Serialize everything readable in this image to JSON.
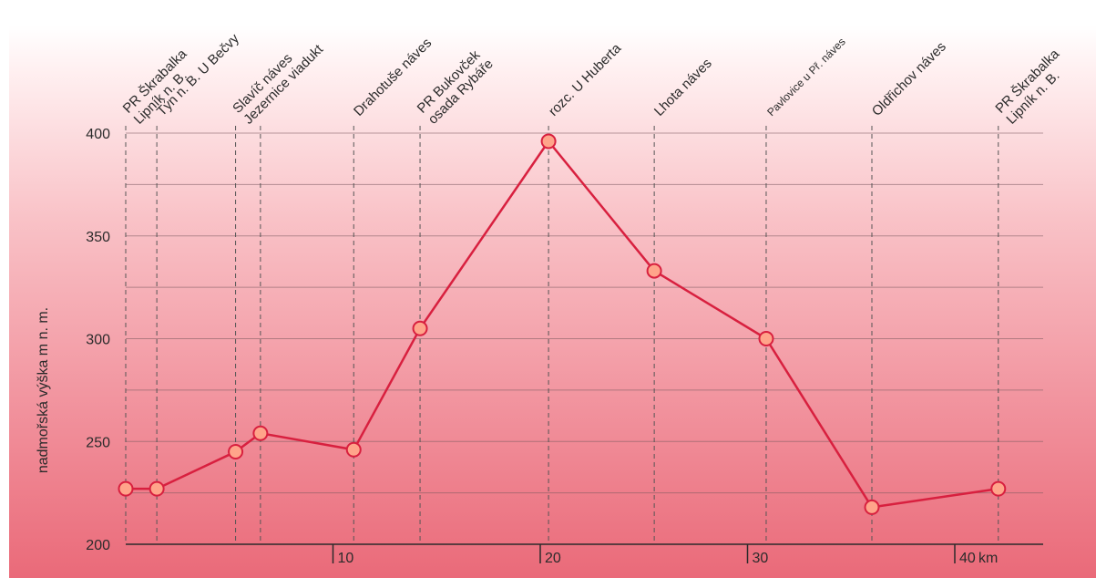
{
  "chart_data": {
    "type": "line",
    "title": "",
    "xlabel": "",
    "ylabel": "nadmořská výška m n. m.",
    "x_unit": "km",
    "xlim": [
      0,
      44
    ],
    "ylim": [
      200,
      400
    ],
    "y_ticks": [
      200,
      250,
      300,
      350,
      400
    ],
    "x_ticks": [
      10,
      20,
      30,
      40
    ],
    "x_tick_labels": [
      "10",
      "20",
      "30",
      "40"
    ],
    "grid": true,
    "colors": {
      "line": "#d8203f",
      "marker_fill": "#ffa48a",
      "marker_stroke": "#d8203f"
    },
    "series": [
      {
        "values": [
          {
            "x": 0,
            "y": 227
          },
          {
            "x": 1.5,
            "y": 227
          },
          {
            "x": 5.3,
            "y": 245
          },
          {
            "x": 6.5,
            "y": 254
          },
          {
            "x": 11,
            "y": 246
          },
          {
            "x": 14.2,
            "y": 305
          },
          {
            "x": 20.4,
            "y": 396
          },
          {
            "x": 25.5,
            "y": 333
          },
          {
            "x": 30.9,
            "y": 300
          },
          {
            "x": 36,
            "y": 218
          },
          {
            "x": 42.1,
            "y": 227
          }
        ]
      }
    ],
    "stops": [
      {
        "x": 0,
        "lines": [
          "Lipník n. B.",
          "PR Škrabalka"
        ]
      },
      {
        "x": 1.5,
        "lines": [
          "Týn n. B. U Bečvy"
        ]
      },
      {
        "x": 5.3,
        "lines": [
          "Jezernice viadukt",
          "Slavíč náves"
        ]
      },
      {
        "x": 6.5,
        "lines": []
      },
      {
        "x": 11,
        "lines": [
          "Drahotuše náves"
        ]
      },
      {
        "x": 14.2,
        "lines": [
          "osada Rybáře",
          "PR Bukovček"
        ]
      },
      {
        "x": 20.4,
        "lines": [
          "rozc. U Huberta"
        ]
      },
      {
        "x": 25.5,
        "lines": [
          "Lhota náves"
        ]
      },
      {
        "x": 30.9,
        "lines": [
          "Pavlovice u Př. náves"
        ],
        "small": true
      },
      {
        "x": 36,
        "lines": [
          "Oldřichov náves"
        ]
      },
      {
        "x": 42.1,
        "lines": [
          "Lipník n. B.",
          "PR Škrabalka"
        ]
      }
    ]
  }
}
